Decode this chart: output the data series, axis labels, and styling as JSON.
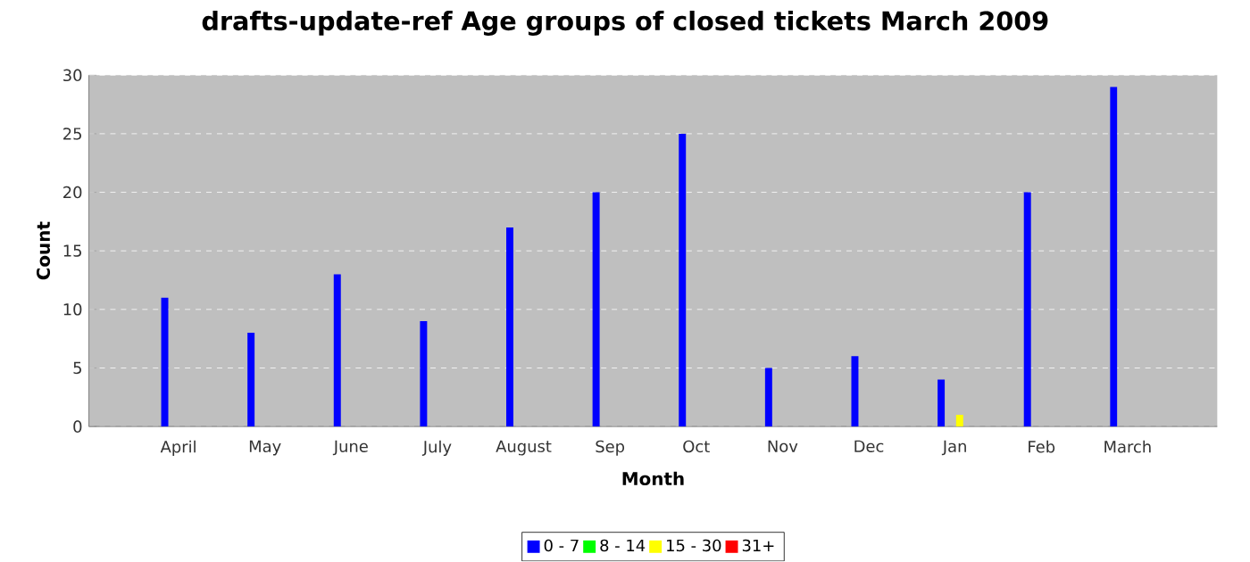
{
  "chart_data": {
    "type": "bar",
    "title": "drafts-update-ref Age groups of closed tickets March 2009",
    "xlabel": "Month",
    "ylabel": "Count",
    "categories": [
      "April",
      "May",
      "June",
      "July",
      "August",
      "Sep",
      "Oct",
      "Nov",
      "Dec",
      "Jan",
      "Feb",
      "March"
    ],
    "series": [
      {
        "name": "0 - 7",
        "color": "#0000ff",
        "values": [
          11,
          8,
          13,
          9,
          17,
          20,
          25,
          5,
          6,
          4,
          20,
          29
        ]
      },
      {
        "name": "8 - 14",
        "color": "#00ff00",
        "values": [
          0,
          0,
          0,
          0,
          0,
          0,
          0,
          0,
          0,
          0,
          0,
          0
        ]
      },
      {
        "name": "15 - 30",
        "color": "#ffff00",
        "values": [
          0,
          0,
          0,
          0,
          0,
          0,
          0,
          0,
          0,
          1,
          0,
          0
        ]
      },
      {
        "name": "31+",
        "color": "#ff0000",
        "values": [
          0,
          0,
          0,
          0,
          0,
          0,
          0,
          0,
          0,
          0,
          0,
          0
        ]
      }
    ],
    "ylim": [
      0,
      30
    ],
    "yticks": [
      0,
      5,
      10,
      15,
      20,
      25,
      30
    ],
    "grid": "y",
    "legend": "bottom"
  }
}
